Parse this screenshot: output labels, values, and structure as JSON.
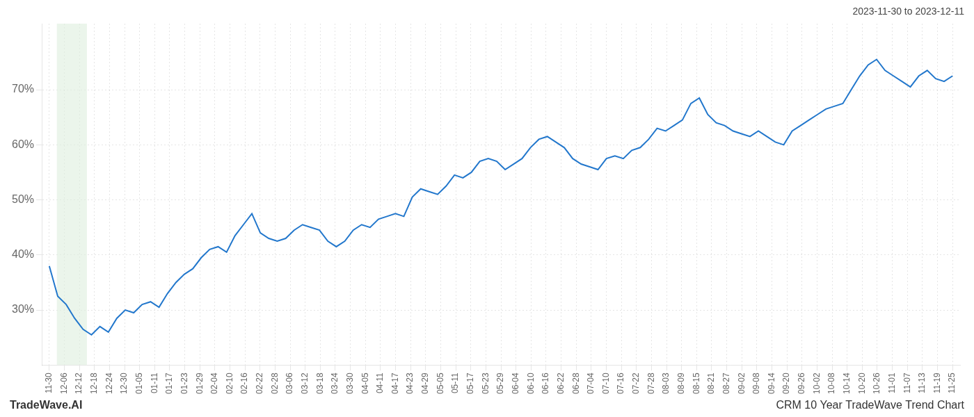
{
  "chart_data": {
    "type": "line",
    "title": "CRM 10 Year TradeWave Trend Chart",
    "subtitle": "2023-11-30 to 2023-12-11",
    "annotations": [
      "TradeWave.AI"
    ],
    "color": "#2277cc",
    "grid": true,
    "highlight": {
      "start": 0.5,
      "end": 2.5,
      "color": "#ddeedd"
    },
    "xlim": [
      -0.5,
      60.5
    ],
    "xticks": [
      {
        "value": 0,
        "label": "11-30"
      },
      {
        "value": 1,
        "label": "12-06"
      },
      {
        "value": 2,
        "label": "12-12"
      },
      {
        "value": 3,
        "label": "12-18"
      },
      {
        "value": 4,
        "label": "12-24"
      },
      {
        "value": 5,
        "label": "12-30"
      },
      {
        "value": 6,
        "label": "01-05"
      },
      {
        "value": 7,
        "label": "01-11"
      },
      {
        "value": 8,
        "label": "01-17"
      },
      {
        "value": 9,
        "label": "01-23"
      },
      {
        "value": 10,
        "label": "01-29"
      },
      {
        "value": 11,
        "label": "02-04"
      },
      {
        "value": 12,
        "label": "02-10"
      },
      {
        "value": 13,
        "label": "02-16"
      },
      {
        "value": 14,
        "label": "02-22"
      },
      {
        "value": 15,
        "label": "02-28"
      },
      {
        "value": 16,
        "label": "03-06"
      },
      {
        "value": 17,
        "label": "03-12"
      },
      {
        "value": 18,
        "label": "03-18"
      },
      {
        "value": 19,
        "label": "03-24"
      },
      {
        "value": 20,
        "label": "03-30"
      },
      {
        "value": 21,
        "label": "04-05"
      },
      {
        "value": 22,
        "label": "04-11"
      },
      {
        "value": 23,
        "label": "04-17"
      },
      {
        "value": 24,
        "label": "04-23"
      },
      {
        "value": 25,
        "label": "04-29"
      },
      {
        "value": 26,
        "label": "05-05"
      },
      {
        "value": 27,
        "label": "05-11"
      },
      {
        "value": 28,
        "label": "05-17"
      },
      {
        "value": 29,
        "label": "05-23"
      },
      {
        "value": 30,
        "label": "05-29"
      },
      {
        "value": 31,
        "label": "06-04"
      },
      {
        "value": 32,
        "label": "06-10"
      },
      {
        "value": 33,
        "label": "06-16"
      },
      {
        "value": 34,
        "label": "06-22"
      },
      {
        "value": 35,
        "label": "06-28"
      },
      {
        "value": 36,
        "label": "07-04"
      },
      {
        "value": 37,
        "label": "07-10"
      },
      {
        "value": 38,
        "label": "07-16"
      },
      {
        "value": 39,
        "label": "07-22"
      },
      {
        "value": 40,
        "label": "07-28"
      },
      {
        "value": 41,
        "label": "08-03"
      },
      {
        "value": 42,
        "label": "08-09"
      },
      {
        "value": 43,
        "label": "08-15"
      },
      {
        "value": 44,
        "label": "08-21"
      },
      {
        "value": 45,
        "label": "08-27"
      },
      {
        "value": 46,
        "label": "09-02"
      },
      {
        "value": 47,
        "label": "09-08"
      },
      {
        "value": 48,
        "label": "09-14"
      },
      {
        "value": 49,
        "label": "09-20"
      },
      {
        "value": 50,
        "label": "09-26"
      },
      {
        "value": 51,
        "label": "10-02"
      },
      {
        "value": 52,
        "label": "10-08"
      },
      {
        "value": 53,
        "label": "10-14"
      },
      {
        "value": 54,
        "label": "10-20"
      },
      {
        "value": 55,
        "label": "10-26"
      },
      {
        "value": 56,
        "label": "11-01"
      },
      {
        "value": 57,
        "label": "11-07"
      },
      {
        "value": 58,
        "label": "11-13"
      },
      {
        "value": 59,
        "label": "11-19"
      },
      {
        "value": 60,
        "label": "11-25"
      }
    ],
    "ylim": [
      20,
      82
    ],
    "yticks": [
      {
        "value": 30,
        "label": "30%"
      },
      {
        "value": 40,
        "label": "40%"
      },
      {
        "value": 50,
        "label": "50%"
      },
      {
        "value": 60,
        "label": "60%"
      },
      {
        "value": 70,
        "label": "70%"
      }
    ],
    "x": [
      0,
      0.560748,
      1.121495,
      1.682243,
      2.242991,
      2.803738,
      3.364486,
      3.925234,
      4.485981,
      5.046729,
      5.607477,
      6.168224,
      6.728972,
      7.28972,
      7.850467,
      8.411215,
      8.971963,
      9.53271,
      10.093458,
      10.654206,
      11.214953,
      11.775701,
      12.336449,
      12.897196,
      13.457944,
      14.018692,
      14.579439,
      15.140187,
      15.700935,
      16.261682,
      16.82243,
      17.383178,
      17.943925,
      18.504673,
      19.065421,
      19.626168,
      20.186916,
      20.747664,
      21.308411,
      21.869159,
      22.429907,
      22.990654,
      23.551402,
      24.11215,
      24.672897,
      25.233645,
      25.794393,
      26.35514,
      26.915888,
      27.476636,
      28.037383,
      28.598131,
      29.158879,
      29.719626,
      30.280374,
      30.841121,
      31.401869,
      31.962617,
      32.523364,
      33.084112,
      33.64486,
      34.205607,
      34.766355,
      35.327103,
      35.88785,
      36.448598,
      37.009346,
      37.570093,
      38.130841,
      38.691589,
      39.252336,
      39.813084,
      40.373832,
      40.934579,
      41.495327,
      42.056075,
      42.616822,
      43.17757,
      43.738318,
      44.299065,
      44.859813,
      45.420561,
      45.981308,
      46.542056,
      47.102804,
      47.663551,
      48.224299,
      48.785047,
      49.345794,
      49.906542,
      50.46729,
      51.028037,
      51.588785,
      52.149533,
      52.71028,
      53.271028,
      53.831776,
      54.392523,
      54.953271,
      55.514019,
      56.074766,
      56.635514,
      57.196262,
      57.757009,
      58.317757,
      58.878505,
      59.439252,
      60
    ],
    "values": [
      38.0,
      32.5,
      31.0,
      28.5,
      26.5,
      25.5,
      27.0,
      26.0,
      28.5,
      30.0,
      29.5,
      31.0,
      31.5,
      30.5,
      33.0,
      35.0,
      36.5,
      37.5,
      39.5,
      41.0,
      41.5,
      40.5,
      43.5,
      45.5,
      47.5,
      44.0,
      43.0,
      42.5,
      43.0,
      44.5,
      45.5,
      45.0,
      44.5,
      42.5,
      41.5,
      42.5,
      44.5,
      45.5,
      45.0,
      46.5,
      47.0,
      47.5,
      47.0,
      50.5,
      52.0,
      51.5,
      51.0,
      52.5,
      54.5,
      54.0,
      55.0,
      57.0,
      57.5,
      57.0,
      55.5,
      56.5,
      57.5,
      59.5,
      61.0,
      61.5,
      60.5,
      59.5,
      57.5,
      56.5,
      56.0,
      55.5,
      57.5,
      58.0,
      57.5,
      59.0,
      59.5,
      61.0,
      63.0,
      62.5,
      63.5,
      64.5,
      67.5,
      68.5,
      65.5,
      64.0,
      63.5,
      62.5,
      62.0,
      61.5,
      62.5,
      61.5,
      60.5,
      60.0,
      62.5,
      63.5,
      64.5,
      65.5,
      66.5,
      67.0,
      67.5,
      70.0,
      72.5,
      74.5,
      75.5,
      73.5,
      72.5,
      71.5,
      70.5,
      72.5,
      73.5,
      72.0,
      71.5,
      72.5
    ]
  }
}
